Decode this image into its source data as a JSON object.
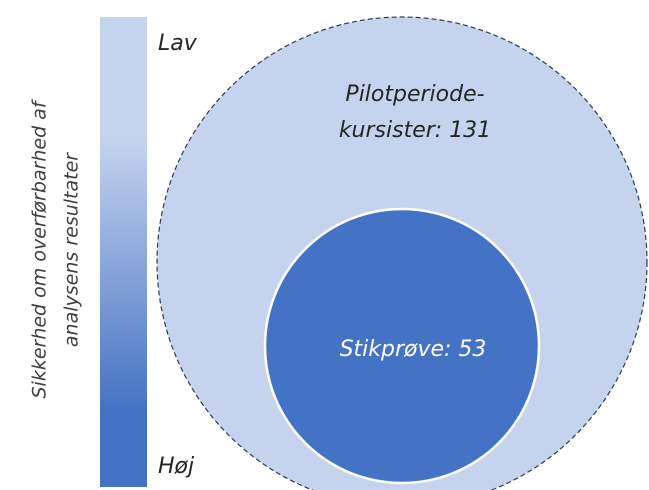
{
  "scale": {
    "label_lines": [
      "Sikkerhed om overførbarhed af",
      "analysens resultater"
    ],
    "low": "Lav",
    "high": "Høj"
  },
  "population": {
    "label_lines": [
      "Pilotperiode-",
      "kursister: 131"
    ]
  },
  "sample": {
    "label": "Stikprøve: 53"
  }
}
